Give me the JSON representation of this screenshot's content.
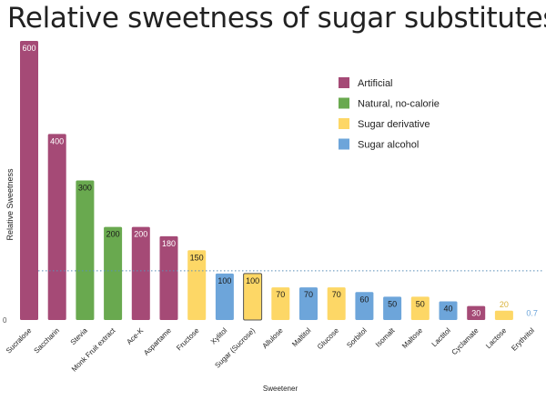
{
  "chart_data": {
    "type": "bar",
    "title": "Relative sweetness of sugar substitutes",
    "xlabel": "Sweetener",
    "ylabel": "Relative Sweetness",
    "ylim": [
      0,
      600
    ],
    "y_tick_labels": [
      "0"
    ],
    "reference_line": {
      "value": 100,
      "style": "dotted"
    },
    "legend_position": "top-right",
    "colors": {
      "Artificial": "#a54a76",
      "Natural, no-calorie": "#69a94f",
      "Sugar derivative": "#fdd766",
      "Sugar alcohol": "#6da5da"
    },
    "legend": [
      "Artificial",
      "Natural, no-calorie",
      "Sugar derivative",
      "Sugar alcohol"
    ],
    "categories": [
      "Sucralose",
      "Saccharin",
      "Stevia",
      "Monk Fruit extract",
      "Ace-K",
      "Aspartame",
      "Fructose",
      "Xylitol",
      "Sugar (Sucrose)",
      "Allulose",
      "Maltitol",
      "Glucose",
      "Sorbitol",
      "Isomalt",
      "Maltose",
      "Lactitol",
      "Cyclamate",
      "Lactose",
      "Erythritol"
    ],
    "values": [
      600,
      400,
      300,
      200,
      200,
      180,
      150,
      100,
      100,
      70,
      70,
      70,
      60,
      50,
      50,
      40,
      30,
      20,
      0.7
    ],
    "value_labels": [
      "600",
      "400",
      "300",
      "200",
      "200",
      "180",
      "150",
      "100",
      "100",
      "70",
      "70",
      "70",
      "60",
      "50",
      "50",
      "40",
      "30",
      "20",
      "0.7"
    ],
    "groups": [
      "Artificial",
      "Artificial",
      "Natural, no-calorie",
      "Natural, no-calorie",
      "Artificial",
      "Artificial",
      "Sugar derivative",
      "Sugar alcohol",
      "Sugar derivative",
      "Sugar derivative",
      "Sugar alcohol",
      "Sugar derivative",
      "Sugar alcohol",
      "Sugar alcohol",
      "Sugar derivative",
      "Sugar alcohol",
      "Artificial",
      "Sugar derivative",
      "Sugar alcohol"
    ]
  }
}
